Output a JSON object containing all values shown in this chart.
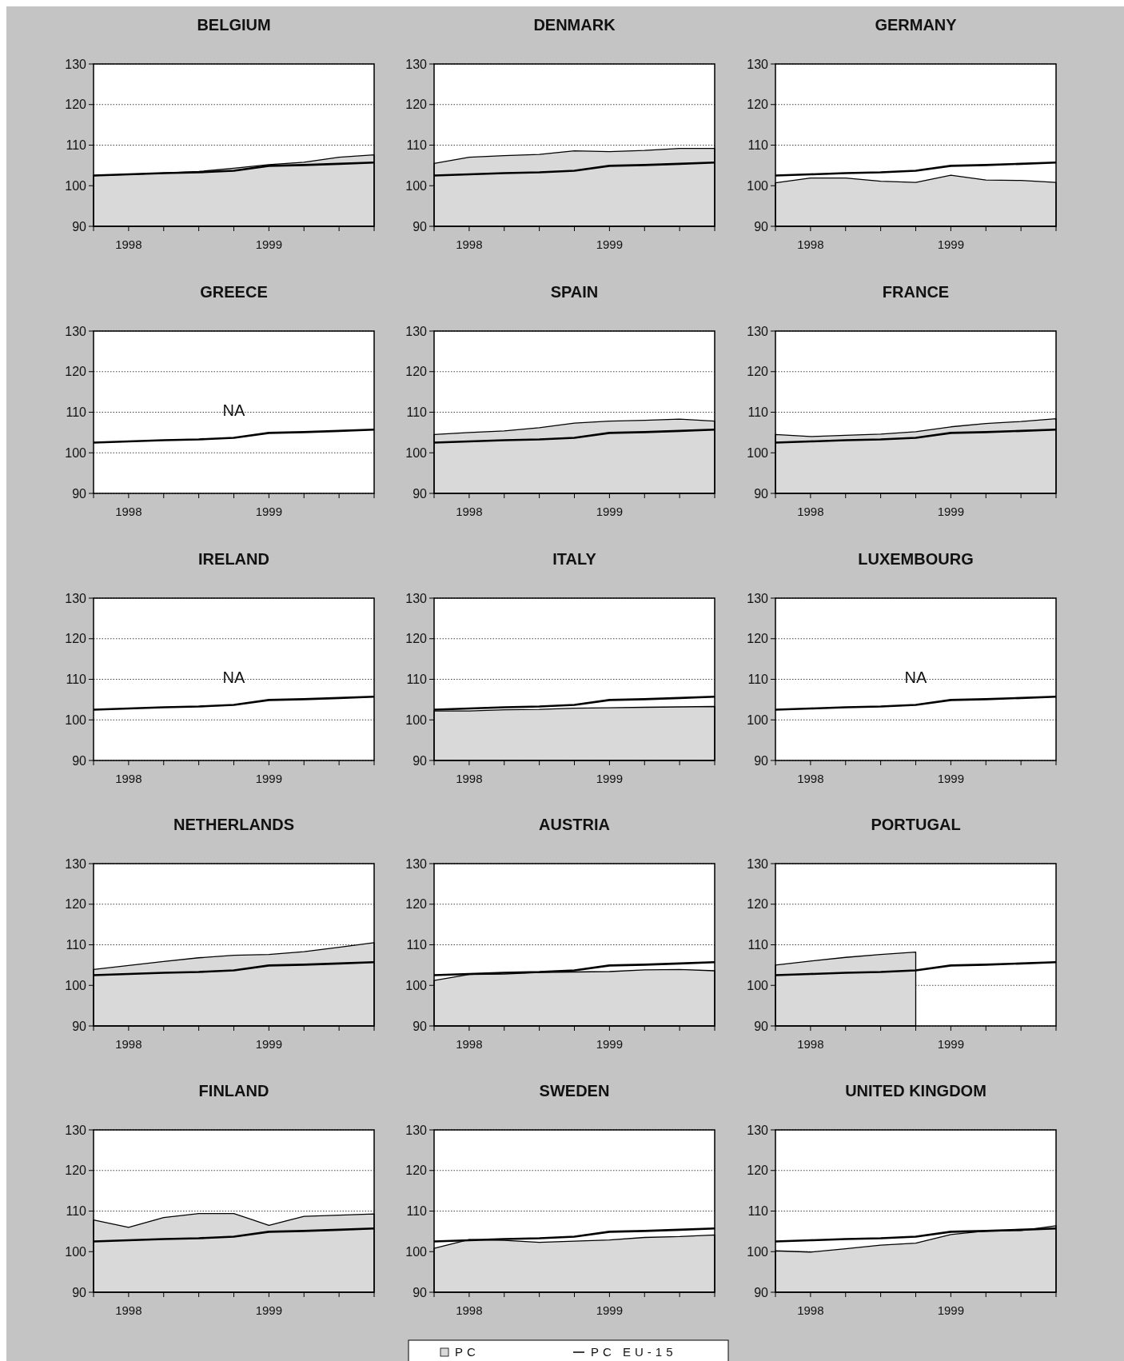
{
  "chart_data": [
    {
      "type": "area",
      "title": "BELGIUM",
      "categories": [
        null,
        "1998",
        null,
        null,
        null,
        "1999",
        null,
        null,
        null
      ],
      "ylim": [
        90,
        130
      ],
      "yticks": [
        90,
        100,
        110,
        120,
        130
      ],
      "grid": "y",
      "legend": false,
      "series": [
        {
          "type": "area",
          "color": "#d9d9d9",
          "values": [
            102.5,
            102.8,
            103.1,
            103.5,
            104.3,
            105.2,
            105.8,
            107,
            107.6
          ]
        },
        {
          "type": "line",
          "color": "#000000",
          "values": [
            102.5,
            102.8,
            103.1,
            103.3,
            103.7,
            104.9,
            105.1,
            105.4,
            105.7
          ]
        }
      ]
    },
    {
      "type": "area",
      "title": "DENMARK",
      "categories": [
        null,
        "1998",
        null,
        null,
        null,
        "1999",
        null,
        null,
        null
      ],
      "ylim": [
        90,
        130
      ],
      "yticks": [
        90,
        100,
        110,
        120,
        130
      ],
      "grid": "y",
      "legend": false,
      "series": [
        {
          "type": "area",
          "color": "#d9d9d9",
          "values": [
            105.5,
            107,
            107.4,
            107.7,
            108.6,
            108.4,
            108.7,
            109.2,
            109.2
          ]
        },
        {
          "type": "line",
          "color": "#000000",
          "values": [
            102.5,
            102.8,
            103.1,
            103.3,
            103.7,
            104.9,
            105.1,
            105.4,
            105.7
          ]
        }
      ]
    },
    {
      "type": "area",
      "title": "GERMANY",
      "categories": [
        null,
        "1998",
        null,
        null,
        null,
        "1999",
        null,
        null,
        null
      ],
      "ylim": [
        90,
        130
      ],
      "yticks": [
        90,
        100,
        110,
        120,
        130
      ],
      "grid": "y",
      "legend": false,
      "series": [
        {
          "type": "area",
          "color": "#d9d9d9",
          "values": [
            100.7,
            101.9,
            101.9,
            101.1,
            100.8,
            102.6,
            101.4,
            101.3,
            100.8
          ]
        },
        {
          "type": "line",
          "color": "#000000",
          "values": [
            102.5,
            102.8,
            103.1,
            103.3,
            103.7,
            104.9,
            105.1,
            105.4,
            105.7
          ]
        }
      ]
    },
    {
      "type": "area",
      "title": "GREECE",
      "categories": [
        null,
        "1998",
        null,
        null,
        null,
        "1999",
        null,
        null,
        null
      ],
      "ylim": [
        90,
        130
      ],
      "yticks": [
        90,
        100,
        110,
        120,
        130
      ],
      "grid": "y",
      "legend": false,
      "annotations": [
        "NA"
      ],
      "series": [
        {
          "type": "line",
          "color": "#000000",
          "values": [
            102.5,
            102.8,
            103.1,
            103.3,
            103.7,
            104.9,
            105.1,
            105.4,
            105.7
          ]
        }
      ]
    },
    {
      "type": "area",
      "title": "SPAIN",
      "categories": [
        null,
        "1998",
        null,
        null,
        null,
        "1999",
        null,
        null,
        null
      ],
      "ylim": [
        90,
        130
      ],
      "yticks": [
        90,
        100,
        110,
        120,
        130
      ],
      "grid": "y",
      "legend": false,
      "series": [
        {
          "type": "area",
          "color": "#d9d9d9",
          "values": [
            104.5,
            105,
            105.4,
            106.2,
            107.3,
            107.8,
            108,
            108.3,
            107.8
          ]
        },
        {
          "type": "line",
          "color": "#000000",
          "values": [
            102.5,
            102.8,
            103.1,
            103.3,
            103.7,
            104.9,
            105.1,
            105.4,
            105.7
          ]
        }
      ]
    },
    {
      "type": "area",
      "title": "FRANCE",
      "categories": [
        null,
        "1998",
        null,
        null,
        null,
        "1999",
        null,
        null,
        null
      ],
      "ylim": [
        90,
        130
      ],
      "yticks": [
        90,
        100,
        110,
        120,
        130
      ],
      "grid": "y",
      "legend": false,
      "series": [
        {
          "type": "area",
          "color": "#d9d9d9",
          "values": [
            104.5,
            104,
            104.3,
            104.6,
            105.2,
            106.4,
            107.2,
            107.7,
            108.4
          ]
        },
        {
          "type": "line",
          "color": "#000000",
          "values": [
            102.5,
            102.8,
            103.1,
            103.3,
            103.7,
            104.9,
            105.1,
            105.4,
            105.7
          ]
        }
      ]
    },
    {
      "type": "area",
      "title": "IRELAND",
      "categories": [
        null,
        "1998",
        null,
        null,
        null,
        "1999",
        null,
        null,
        null
      ],
      "ylim": [
        90,
        130
      ],
      "yticks": [
        90,
        100,
        110,
        120,
        130
      ],
      "grid": "y",
      "legend": false,
      "annotations": [
        "NA"
      ],
      "series": [
        {
          "type": "line",
          "color": "#000000",
          "values": [
            102.5,
            102.8,
            103.1,
            103.3,
            103.7,
            104.9,
            105.1,
            105.4,
            105.7
          ]
        }
      ]
    },
    {
      "type": "area",
      "title": "ITALY",
      "categories": [
        null,
        "1998",
        null,
        null,
        null,
        "1999",
        null,
        null,
        null
      ],
      "ylim": [
        90,
        130
      ],
      "yticks": [
        90,
        100,
        110,
        120,
        130
      ],
      "grid": "y",
      "legend": false,
      "series": [
        {
          "type": "area",
          "color": "#d9d9d9",
          "values": [
            102.2,
            102.2,
            102.5,
            102.6,
            102.9,
            103,
            103.1,
            103.2,
            103.3
          ]
        },
        {
          "type": "line",
          "color": "#000000",
          "values": [
            102.5,
            102.8,
            103.1,
            103.3,
            103.7,
            104.9,
            105.1,
            105.4,
            105.7
          ]
        }
      ]
    },
    {
      "type": "area",
      "title": "LUXEMBOURG",
      "categories": [
        null,
        "1998",
        null,
        null,
        null,
        "1999",
        null,
        null,
        null
      ],
      "ylim": [
        90,
        130
      ],
      "yticks": [
        90,
        100,
        110,
        120,
        130
      ],
      "grid": "y",
      "legend": false,
      "annotations": [
        "NA"
      ],
      "series": [
        {
          "type": "line",
          "color": "#000000",
          "values": [
            102.5,
            102.8,
            103.1,
            103.3,
            103.7,
            104.9,
            105.1,
            105.4,
            105.7
          ]
        }
      ]
    },
    {
      "type": "area",
      "title": "NETHERLANDS",
      "categories": [
        null,
        "1998",
        null,
        null,
        null,
        "1999",
        null,
        null,
        null
      ],
      "ylim": [
        90,
        130
      ],
      "yticks": [
        90,
        100,
        110,
        120,
        130
      ],
      "grid": "y",
      "legend": false,
      "series": [
        {
          "type": "area",
          "color": "#d9d9d9",
          "values": [
            103.9,
            104.9,
            105.9,
            106.8,
            107.4,
            107.6,
            108.3,
            109.4,
            110.5
          ]
        },
        {
          "type": "line",
          "color": "#000000",
          "values": [
            102.5,
            102.8,
            103.1,
            103.3,
            103.7,
            104.9,
            105.1,
            105.4,
            105.7
          ]
        }
      ]
    },
    {
      "type": "area",
      "title": "AUSTRIA",
      "categories": [
        null,
        "1998",
        null,
        null,
        null,
        "1999",
        null,
        null,
        null
      ],
      "ylim": [
        90,
        130
      ],
      "yticks": [
        90,
        100,
        110,
        120,
        130
      ],
      "grid": "y",
      "legend": false,
      "series": [
        {
          "type": "area",
          "color": "#d9d9d9",
          "values": [
            101.2,
            102.7,
            102.8,
            103.2,
            103.3,
            103.4,
            103.8,
            103.9,
            103.6
          ]
        },
        {
          "type": "line",
          "color": "#000000",
          "values": [
            102.5,
            102.8,
            103.1,
            103.3,
            103.7,
            104.9,
            105.1,
            105.4,
            105.7
          ]
        }
      ]
    },
    {
      "type": "area",
      "title": "PORTUGAL",
      "categories": [
        null,
        "1998",
        null,
        null,
        null,
        "1999",
        null,
        null,
        null
      ],
      "ylim": [
        90,
        130
      ],
      "yticks": [
        90,
        100,
        110,
        120,
        130
      ],
      "grid": "y",
      "legend": false,
      "series": [
        {
          "type": "area",
          "color": "#d9d9d9",
          "values": [
            105,
            106,
            106.9,
            107.6,
            108.2,
            null,
            null,
            null,
            null
          ]
        },
        {
          "type": "line",
          "color": "#000000",
          "values": [
            102.5,
            102.8,
            103.1,
            103.3,
            103.7,
            104.9,
            105.1,
            105.4,
            105.7
          ]
        }
      ]
    },
    {
      "type": "area",
      "title": "FINLAND",
      "categories": [
        null,
        "1998",
        null,
        null,
        null,
        "1999",
        null,
        null,
        null
      ],
      "ylim": [
        90,
        130
      ],
      "yticks": [
        90,
        100,
        110,
        120,
        130
      ],
      "grid": "y",
      "legend": false,
      "series": [
        {
          "type": "area",
          "color": "#d9d9d9",
          "values": [
            107.8,
            106,
            108.4,
            109.4,
            109.4,
            106.5,
            108.7,
            109,
            109.3
          ]
        },
        {
          "type": "line",
          "color": "#000000",
          "values": [
            102.5,
            102.8,
            103.1,
            103.3,
            103.7,
            104.9,
            105.1,
            105.4,
            105.7
          ]
        }
      ]
    },
    {
      "type": "area",
      "title": "SWEDEN",
      "categories": [
        null,
        "1998",
        null,
        null,
        null,
        "1999",
        null,
        null,
        null
      ],
      "ylim": [
        90,
        130
      ],
      "yticks": [
        90,
        100,
        110,
        120,
        130
      ],
      "grid": "y",
      "legend": "bottom",
      "series": [
        {
          "name": "PC",
          "type": "area",
          "color": "#d9d9d9",
          "values": [
            100.8,
            103,
            102.8,
            102.3,
            102.6,
            102.9,
            103.5,
            103.7,
            104.1
          ]
        },
        {
          "name": "PC EU-15",
          "type": "line",
          "color": "#000000",
          "values": [
            102.5,
            102.8,
            103.1,
            103.3,
            103.7,
            104.9,
            105.1,
            105.4,
            105.7
          ]
        }
      ]
    },
    {
      "type": "area",
      "title": "UNITED KINGDOM",
      "categories": [
        null,
        "1998",
        null,
        null,
        null,
        "1999",
        null,
        null,
        null
      ],
      "ylim": [
        90,
        130
      ],
      "yticks": [
        90,
        100,
        110,
        120,
        130
      ],
      "grid": "y",
      "legend": false,
      "series": [
        {
          "type": "area",
          "color": "#d9d9d9",
          "values": [
            100.2,
            99.9,
            100.7,
            101.6,
            102.1,
            104.2,
            105.1,
            105.2,
            106.4
          ]
        },
        {
          "type": "line",
          "color": "#000000",
          "values": [
            102.5,
            102.8,
            103.1,
            103.3,
            103.7,
            104.9,
            105.1,
            105.4,
            105.7
          ]
        }
      ]
    }
  ]
}
